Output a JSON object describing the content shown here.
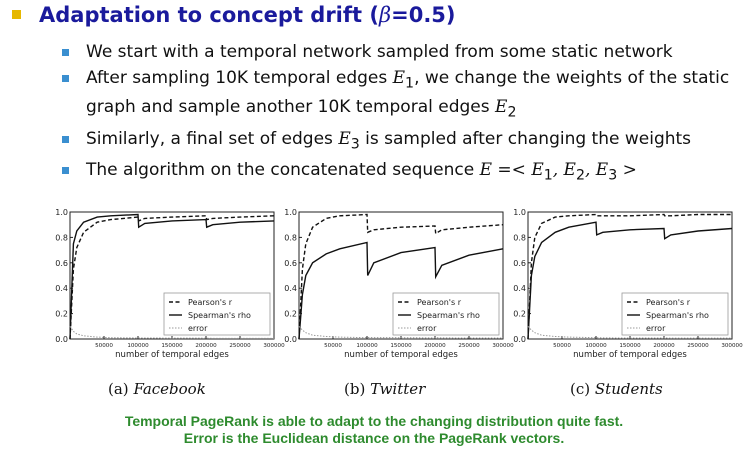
{
  "title": {
    "text": "Adaptation to concept drift (",
    "beta": "β",
    "beta_value": "=0.5)"
  },
  "bullets": [
    {
      "parts": [
        "We start with a temporal network sampled from some static network"
      ]
    },
    {
      "parts": [
        "After sampling 10K temporal edges ",
        "E",
        "1",
        ", we change the weights of the static graph and sample another 10K temporal edges ",
        "E",
        "2"
      ]
    },
    {
      "parts": [
        "Similarly, a final set of edges ",
        "E",
        "3",
        " is sampled after changing the weights"
      ]
    },
    {
      "parts": [
        "The algorithm on the concatenated sequence ",
        "E =< E",
        "1",
        ", E",
        "2",
        ", E",
        "3",
        " >"
      ]
    }
  ],
  "figures": {
    "xlabel": "number of temporal edges",
    "legend": [
      "Pearson's r",
      "Spearman's rho",
      "error"
    ],
    "yticks": [
      "0.0",
      "0.2",
      "0.4",
      "0.6",
      "0.8",
      "1.0"
    ],
    "xticks": [
      "50000",
      "100000",
      "150000",
      "200000",
      "250000",
      "300000"
    ],
    "captions": [
      {
        "label": "(a)",
        "name": "Facebook"
      },
      {
        "label": "(b)",
        "name": "Twitter"
      },
      {
        "label": "(c)",
        "name": "Students"
      }
    ]
  },
  "footer": {
    "line1": "Temporal PageRank is able to adapt to the changing distribution quite fast.",
    "line2": "Error is the Euclidean distance on the PageRank vectors."
  },
  "chart_data": [
    {
      "type": "line",
      "title": "Facebook",
      "xlabel": "number of temporal edges",
      "ylabel": "",
      "xlim": [
        0,
        300000
      ],
      "ylim": [
        0,
        1.0
      ],
      "x": [
        0,
        5000,
        10000,
        20000,
        40000,
        60000,
        100000,
        101000,
        110000,
        150000,
        200000,
        201000,
        210000,
        250000,
        300000
      ],
      "series": [
        {
          "name": "Pearson's r",
          "style": "dashed",
          "values": [
            0.0,
            0.55,
            0.72,
            0.84,
            0.92,
            0.94,
            0.96,
            0.93,
            0.95,
            0.96,
            0.97,
            0.94,
            0.95,
            0.96,
            0.97
          ]
        },
        {
          "name": "Spearman's rho",
          "style": "solid",
          "values": [
            0.0,
            0.75,
            0.85,
            0.92,
            0.96,
            0.97,
            0.98,
            0.88,
            0.91,
            0.93,
            0.94,
            0.88,
            0.9,
            0.92,
            0.93
          ]
        },
        {
          "name": "error",
          "style": "dotted",
          "values": [
            0.1,
            0.06,
            0.04,
            0.025,
            0.015,
            0.01,
            0.008,
            0.009,
            0.008,
            0.007,
            0.006,
            0.006,
            0.005,
            0.005,
            0.005
          ]
        }
      ]
    },
    {
      "type": "line",
      "title": "Twitter",
      "xlabel": "number of temporal edges",
      "ylabel": "",
      "xlim": [
        0,
        300000
      ],
      "ylim": [
        0,
        1.0
      ],
      "x": [
        0,
        5000,
        10000,
        20000,
        40000,
        60000,
        100000,
        101000,
        110000,
        150000,
        200000,
        201000,
        210000,
        250000,
        300000
      ],
      "series": [
        {
          "name": "Pearson's r",
          "style": "dashed",
          "values": [
            0.0,
            0.55,
            0.75,
            0.88,
            0.95,
            0.97,
            0.98,
            0.84,
            0.86,
            0.88,
            0.89,
            0.83,
            0.86,
            0.88,
            0.9
          ]
        },
        {
          "name": "Spearman's rho",
          "style": "solid",
          "values": [
            0.0,
            0.35,
            0.5,
            0.6,
            0.67,
            0.71,
            0.76,
            0.5,
            0.6,
            0.68,
            0.72,
            0.49,
            0.58,
            0.66,
            0.71
          ]
        },
        {
          "name": "error",
          "style": "dotted",
          "values": [
            0.1,
            0.07,
            0.05,
            0.03,
            0.02,
            0.015,
            0.01,
            0.012,
            0.011,
            0.01,
            0.009,
            0.01,
            0.009,
            0.008,
            0.008
          ]
        }
      ]
    },
    {
      "type": "line",
      "title": "Students",
      "xlabel": "number of temporal edges",
      "ylabel": "",
      "xlim": [
        0,
        300000
      ],
      "ylim": [
        0,
        1.0
      ],
      "x": [
        0,
        5000,
        10000,
        20000,
        40000,
        60000,
        100000,
        101000,
        110000,
        150000,
        200000,
        201000,
        210000,
        250000,
        300000
      ],
      "series": [
        {
          "name": "Pearson's r",
          "style": "dashed",
          "values": [
            0.0,
            0.6,
            0.8,
            0.91,
            0.96,
            0.97,
            0.98,
            0.97,
            0.97,
            0.97,
            0.98,
            0.97,
            0.97,
            0.98,
            0.98
          ]
        },
        {
          "name": "Spearman's rho",
          "style": "solid",
          "values": [
            0.0,
            0.5,
            0.65,
            0.76,
            0.84,
            0.88,
            0.92,
            0.82,
            0.84,
            0.86,
            0.87,
            0.79,
            0.82,
            0.85,
            0.87
          ]
        },
        {
          "name": "error",
          "style": "dotted",
          "values": [
            0.1,
            0.07,
            0.05,
            0.03,
            0.02,
            0.015,
            0.01,
            0.01,
            0.009,
            0.008,
            0.008,
            0.008,
            0.007,
            0.007,
            0.007
          ]
        }
      ]
    }
  ]
}
